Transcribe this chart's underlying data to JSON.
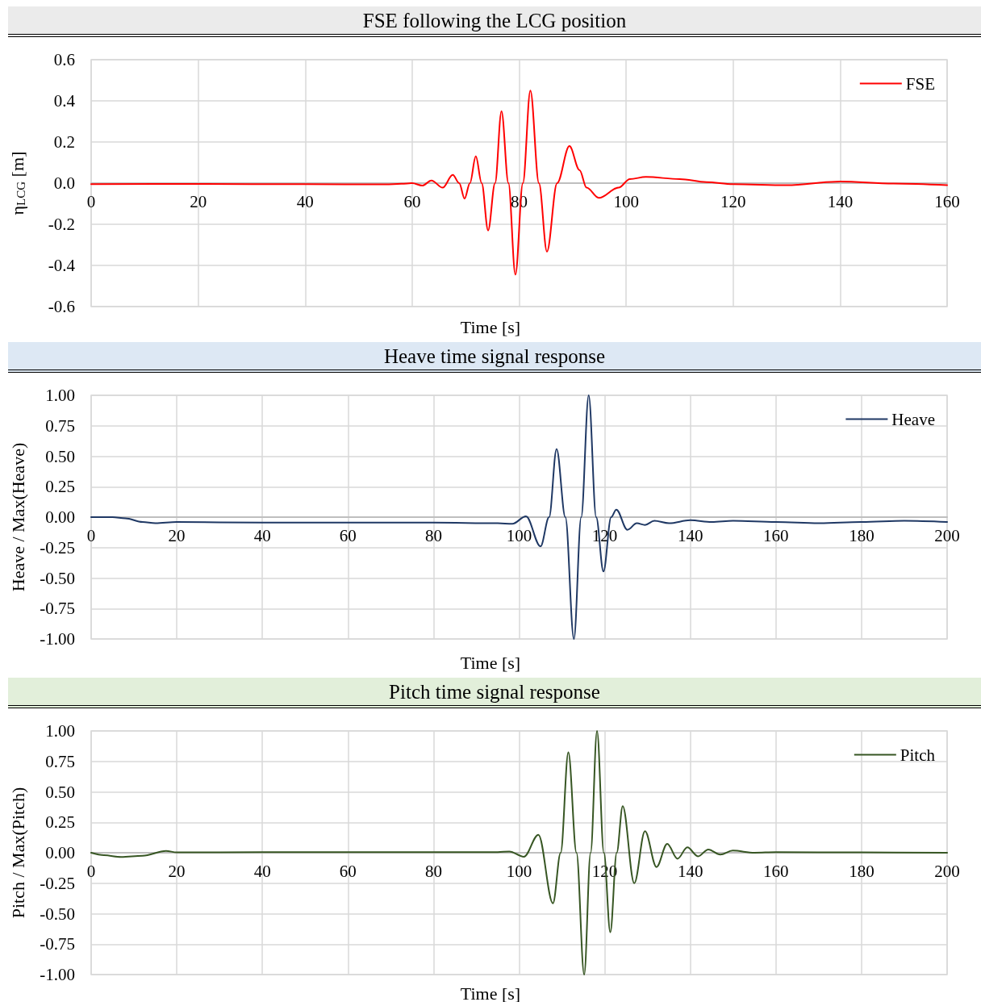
{
  "chart_data": [
    {
      "type": "line",
      "title": "FSE following the LCG position",
      "xlabel": "Time [s]",
      "ylabel": "η$_{LCG}$ [m]",
      "xlim": [
        0,
        160
      ],
      "xticks": [
        0,
        20,
        40,
        60,
        80,
        100,
        120,
        140,
        160
      ],
      "ylim": [
        -0.6,
        0.6
      ],
      "yticks": [
        {
          "value": -0.6,
          "label": "-0.6"
        },
        {
          "value": -0.4,
          "label": "-0.4"
        },
        {
          "value": -0.2,
          "label": "-0.2"
        },
        {
          "value": 0,
          "label": "0.0"
        },
        {
          "value": 0.2,
          "label": "0.2"
        },
        {
          "value": 0.4,
          "label": "0.4"
        },
        {
          "value": 0.6,
          "label": "0.6"
        }
      ],
      "grid": true,
      "legend": "top right",
      "marker": "none",
      "series": [
        {
          "name": "FSE",
          "color": "#ff0000",
          "x": [
            0,
            20,
            40,
            55,
            58,
            60,
            61.9,
            63.6,
            65.7,
            67.6,
            68.8,
            69.8,
            70.8,
            71.9,
            73,
            74.2,
            75.5,
            76.7,
            78,
            79.3,
            80.7,
            82.1,
            83.7,
            85.2,
            87.1,
            89.4,
            91.3,
            92.6,
            94.9,
            98.6,
            100.7,
            103.7,
            110,
            115,
            120,
            130,
            140,
            150,
            160
          ],
          "values": [
            -0.005,
            -0.004,
            -0.005,
            -0.006,
            -0.003,
            0,
            -0.012,
            0.013,
            -0.022,
            0.04,
            0,
            -0.075,
            0,
            0.13,
            0,
            -0.23,
            0,
            0.35,
            0,
            -0.445,
            0,
            0.45,
            0,
            -0.333,
            0,
            0.18,
            0.063,
            -0.022,
            -0.072,
            -0.022,
            0.02,
            0.03,
            0.02,
            0.005,
            -0.005,
            -0.01,
            0.008,
            -0.002,
            -0.01
          ]
        }
      ]
    },
    {
      "type": "line",
      "title": "Heave time signal response",
      "xlabel": "Time [s]",
      "ylabel": "Heave / Max(Heave)",
      "xlim": [
        0,
        200
      ],
      "xticks": [
        0,
        20,
        40,
        60,
        80,
        100,
        120,
        140,
        160,
        180,
        200
      ],
      "ylim": [
        -1,
        1
      ],
      "yticks": [
        {
          "value": -1,
          "label": "-1.00"
        },
        {
          "value": -0.75,
          "label": "-0.75"
        },
        {
          "value": -0.5,
          "label": "-0.50"
        },
        {
          "value": -0.25,
          "label": "-0.25"
        },
        {
          "value": 0,
          "label": "0.00"
        },
        {
          "value": 0.25,
          "label": "0.25"
        },
        {
          "value": 0.5,
          "label": "0.50"
        },
        {
          "value": 0.75,
          "label": "0.75"
        },
        {
          "value": 1,
          "label": "1.00"
        }
      ],
      "grid": true,
      "legend": "top right",
      "marker": "none",
      "series": [
        {
          "name": "Heave",
          "color": "#1f3864",
          "x": [
            0,
            5,
            8,
            12,
            15,
            20,
            40,
            60,
            80,
            95,
            98.4,
            101.6,
            105,
            107,
            108.75,
            110.8,
            112.8,
            114.5,
            116.25,
            118,
            119.7,
            121.5,
            122.7,
            125.3,
            127.5,
            129.4,
            131.6,
            135,
            140,
            145,
            150,
            160,
            170,
            180,
            190,
            200
          ],
          "values": [
            0,
            0,
            -0.01,
            -0.04,
            -0.05,
            -0.04,
            -0.045,
            -0.045,
            -0.045,
            -0.05,
            -0.055,
            0.007,
            -0.24,
            0,
            0.56,
            0,
            -1,
            0,
            1,
            0,
            -0.446,
            0,
            0.062,
            -0.104,
            -0.05,
            -0.064,
            -0.03,
            -0.05,
            -0.025,
            -0.04,
            -0.03,
            -0.04,
            -0.05,
            -0.04,
            -0.03,
            -0.04
          ]
        }
      ]
    },
    {
      "type": "line",
      "title": "Pitch time signal response",
      "xlabel": "Time [s]",
      "ylabel": "Pitch / Max(Pitch)",
      "xlim": [
        0,
        200
      ],
      "xticks": [
        0,
        20,
        40,
        60,
        80,
        100,
        120,
        140,
        160,
        180,
        200
      ],
      "ylim": [
        -1,
        1
      ],
      "yticks": [
        {
          "value": -1,
          "label": "-1.00"
        },
        {
          "value": -0.75,
          "label": "-0.75"
        },
        {
          "value": -0.5,
          "label": "-0.50"
        },
        {
          "value": -0.25,
          "label": "-0.25"
        },
        {
          "value": 0,
          "label": "0.00"
        },
        {
          "value": 0.25,
          "label": "0.25"
        },
        {
          "value": 0.5,
          "label": "0.50"
        },
        {
          "value": 0.75,
          "label": "0.75"
        },
        {
          "value": 1,
          "label": "1.00"
        }
      ],
      "grid": true,
      "legend": "top right",
      "marker": "none",
      "series": [
        {
          "name": "Pitch",
          "color": "#375623",
          "x": [
            0,
            3,
            7,
            12,
            17.5,
            20,
            40,
            60,
            80,
            95,
            97.7,
            101.1,
            104.5,
            107.9,
            109.7,
            111.5,
            113.4,
            115.2,
            116.7,
            118.2,
            119.8,
            121.3,
            122.8,
            124.2,
            126.9,
            129.4,
            132.1,
            134.6,
            137,
            139.3,
            141.8,
            144.2,
            147,
            149.9,
            155,
            160,
            180,
            200
          ],
          "values": [
            0,
            -0.02,
            -0.035,
            -0.025,
            0.015,
            0.003,
            0.005,
            0.005,
            0.005,
            0.005,
            0.01,
            -0.033,
            0.148,
            -0.415,
            0,
            0.824,
            0,
            -1,
            0,
            1,
            0,
            -0.652,
            0,
            0.382,
            -0.25,
            0.177,
            -0.117,
            0.073,
            -0.049,
            0.044,
            -0.029,
            0.027,
            -0.015,
            0.018,
            0,
            0.005,
            0.003,
            0
          ]
        }
      ]
    }
  ]
}
